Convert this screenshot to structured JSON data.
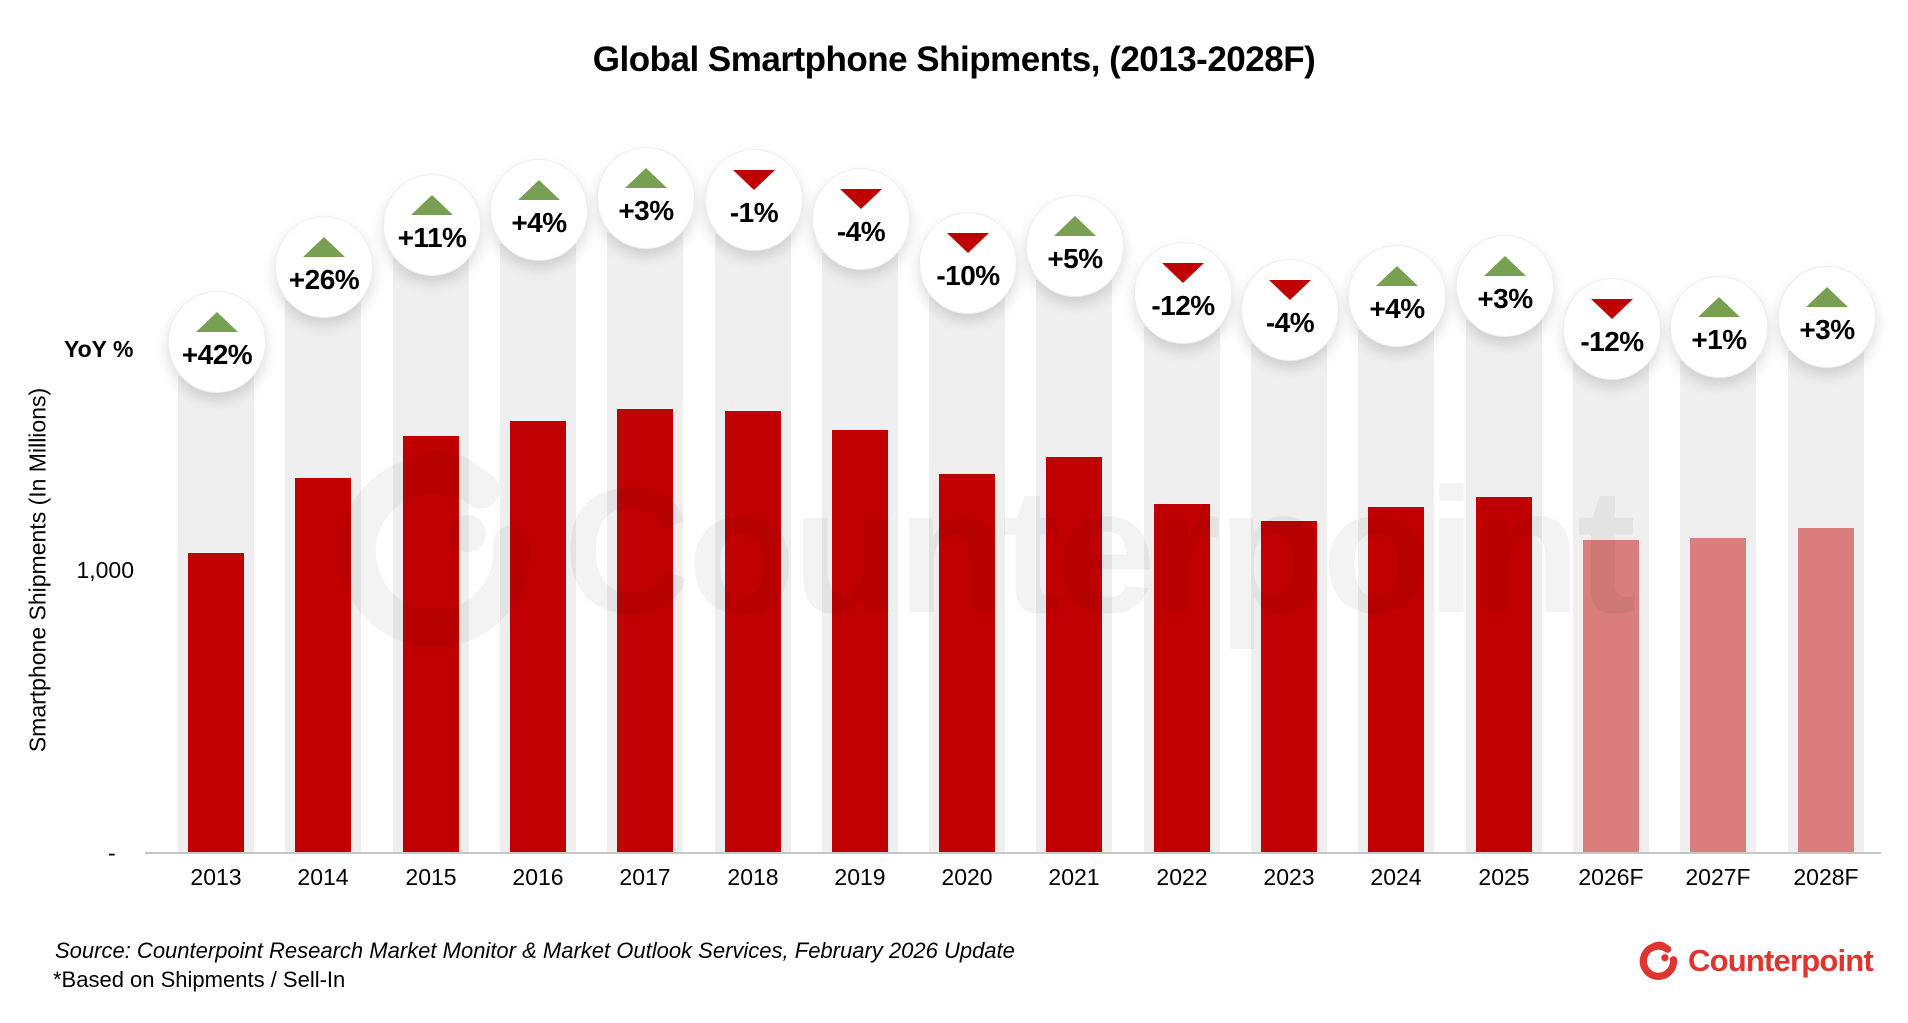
{
  "title": "Global Smartphone Shipments, (2013-2028F)",
  "yoy_axis_label": "YoY %",
  "y_axis": {
    "title": "Smartphone Shipments (In Millions)",
    "tick_1000": "1,000",
    "tick_zero": "-"
  },
  "watermark_text": "Counterpoint",
  "footer": {
    "source": "Source: Counterpoint Research Market Monitor & Market Outlook Services, February 2026 Update",
    "footnote": "*Based on Shipments / Sell-In",
    "logo_text": "Counterpoint"
  },
  "colors": {
    "bar": "#C00000",
    "bar_forecast": "#D97E7C",
    "background_column": "#EFEFEF",
    "up_triangle_green": "#77A052",
    "down_triangle_red": "#C00000",
    "logo_red": "#E0352F"
  },
  "chart_data": {
    "type": "bar",
    "title": "Global Smartphone Shipments, (2013-2028F)",
    "xlabel": "",
    "ylabel": "Smartphone Shipments (In Millions)",
    "categories": [
      "2013",
      "2014",
      "2015",
      "2016",
      "2017",
      "2018",
      "2019",
      "2020",
      "2021",
      "2022",
      "2023",
      "2024",
      "2025",
      "2026F",
      "2027F",
      "2028F"
    ],
    "values": [
      1060,
      1325,
      1475,
      1530,
      1570,
      1565,
      1495,
      1340,
      1400,
      1235,
      1175,
      1225,
      1260,
      1105,
      1115,
      1150
    ],
    "yoy_percent_labels": [
      "+42%",
      "+26%",
      "+11%",
      "+4%",
      "+3%",
      "-1%",
      "-4%",
      "-10%",
      "+5%",
      "-12%",
      "-4%",
      "+4%",
      "+3%",
      "-12%",
      "+1%",
      "+3%"
    ],
    "forecast_categories": [
      "2026F",
      "2027F",
      "2028F"
    ],
    "ylim": [
      0,
      1800
    ],
    "y_ticks_labeled": [
      {
        "value": 0,
        "label": "-"
      },
      {
        "value": 1000,
        "label": "1,000"
      }
    ],
    "grid": "off",
    "legend": "none"
  }
}
